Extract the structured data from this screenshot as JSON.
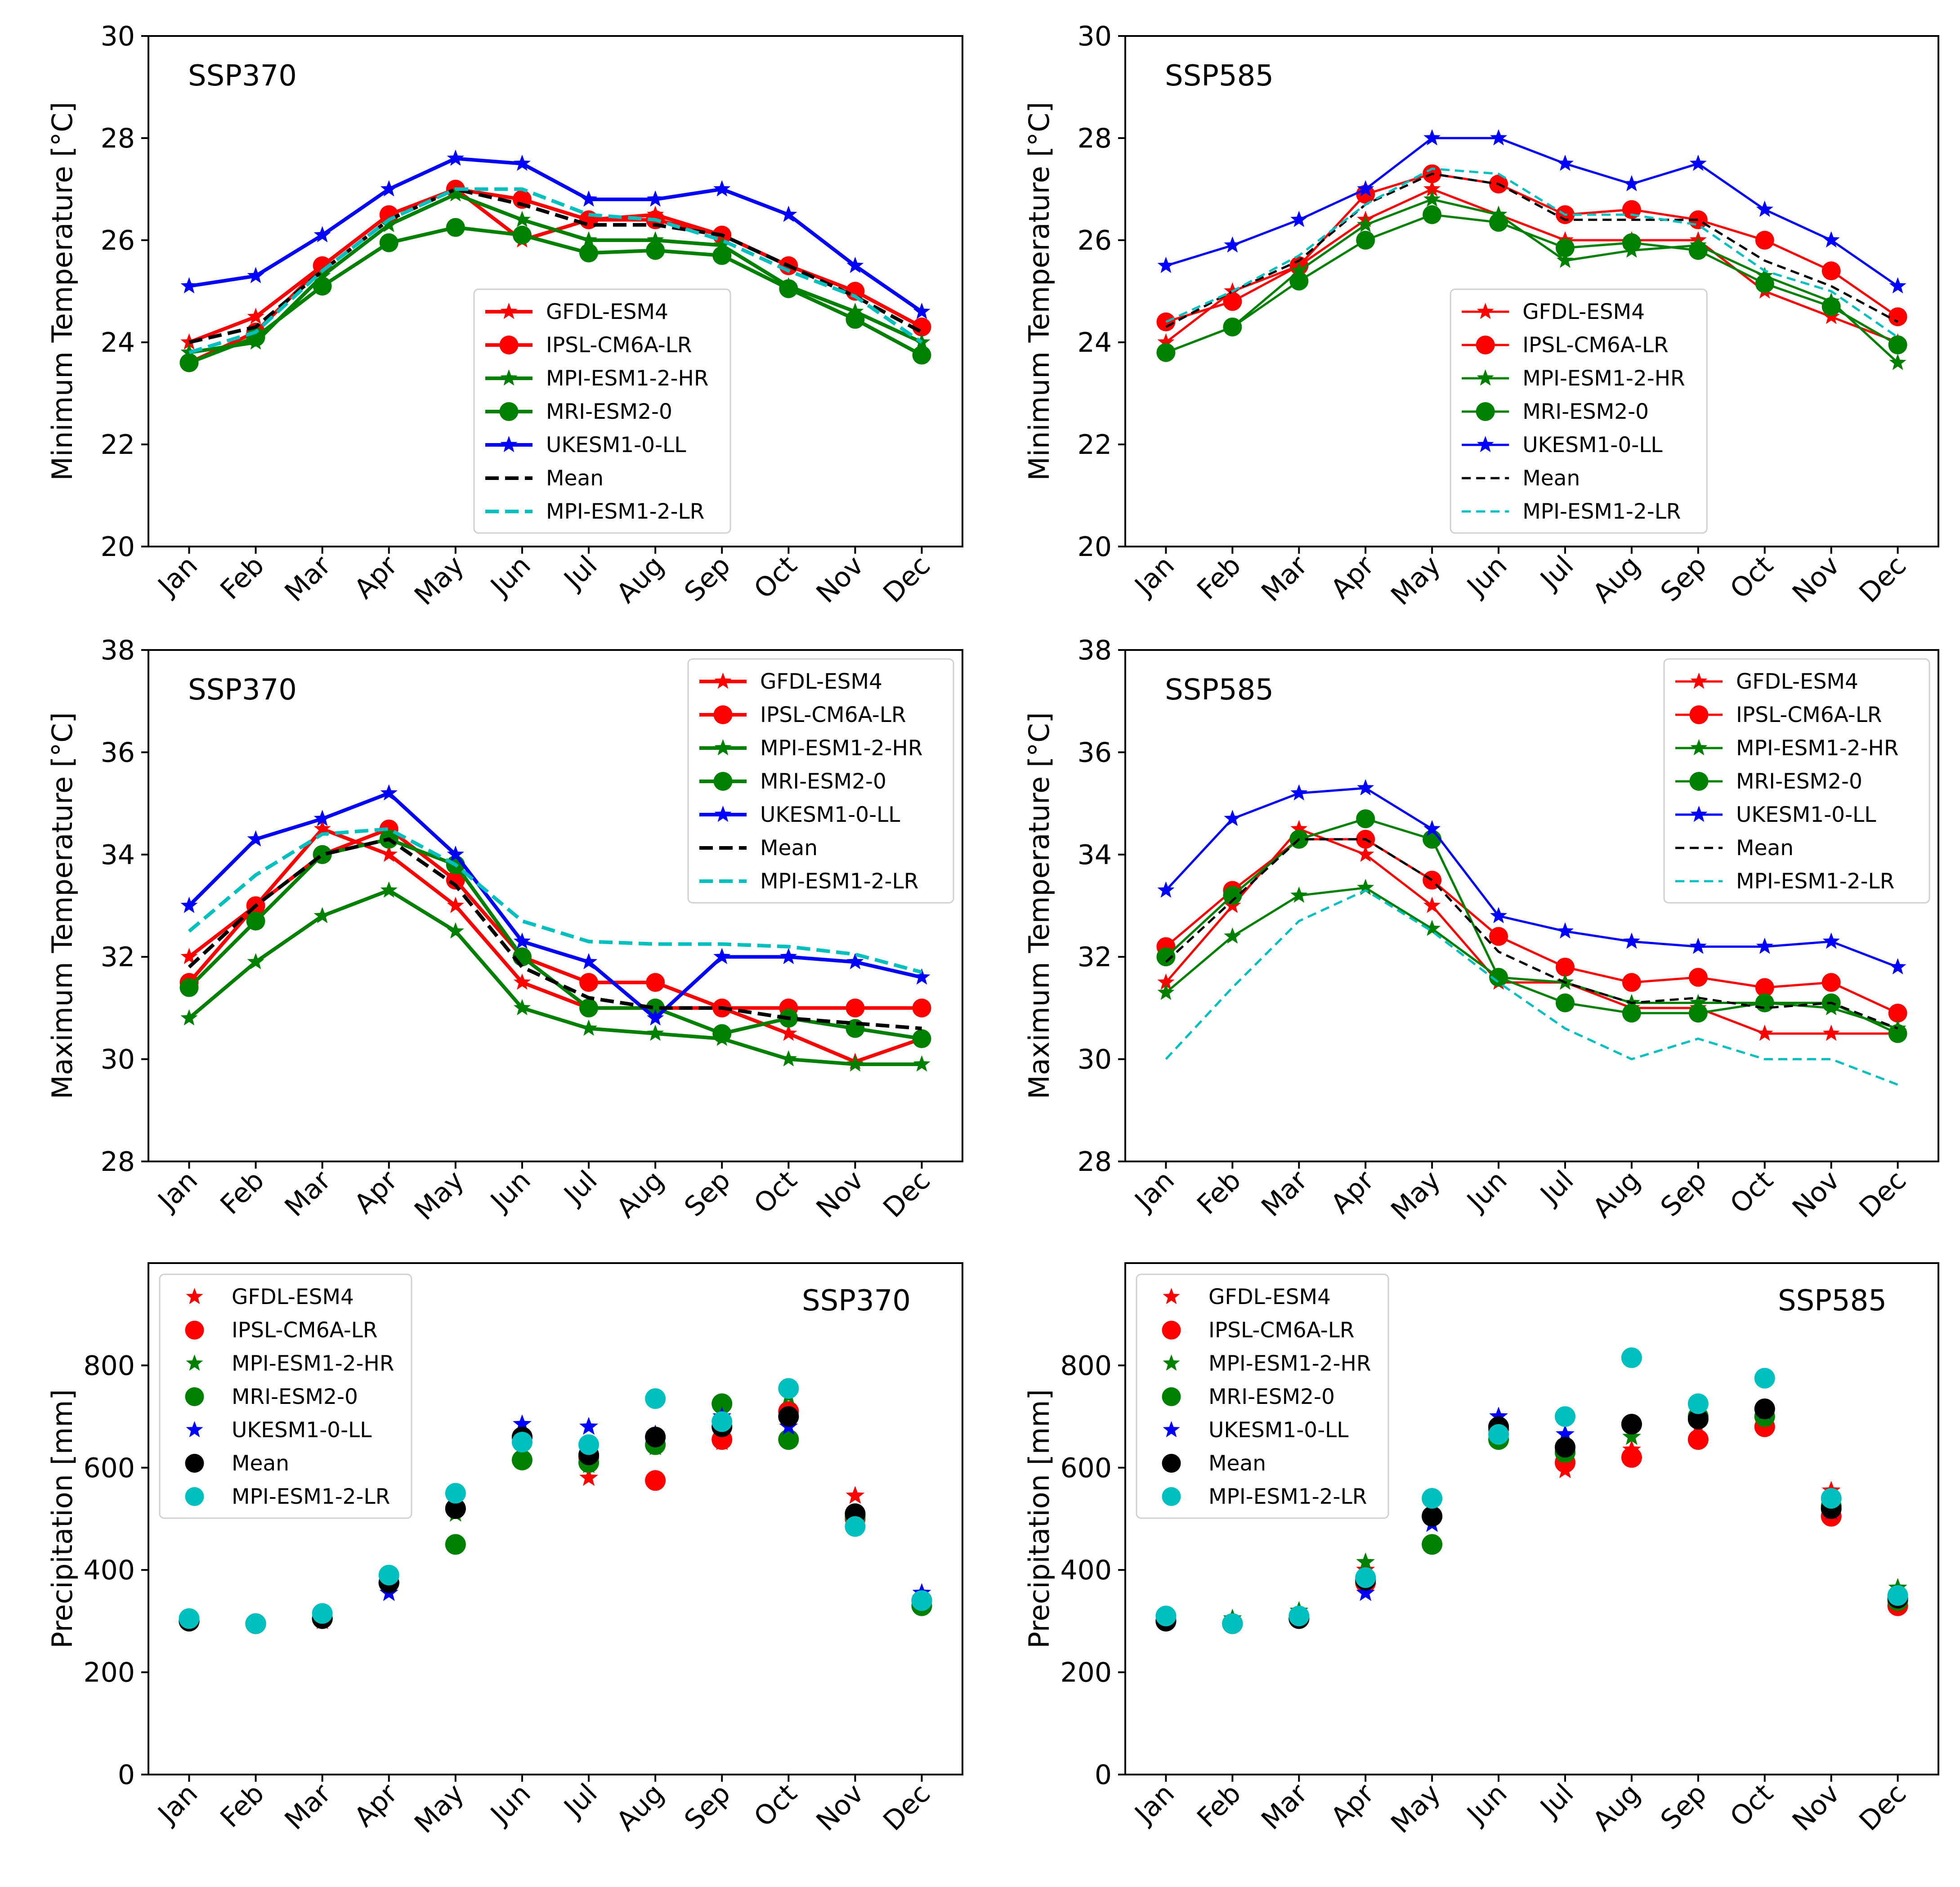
{
  "colors": {
    "GFDL-ESM4": "#ff0000",
    "IPSL-CM6A-LR": "#ff0000",
    "MPI-ESM1-2-HR": "#008000",
    "MRI-ESM2-0": "#008000",
    "UKESM1-0-LL": "#0000ff",
    "Mean": "#000000",
    "MPI-ESM1-2-LR": "#00bfbf"
  },
  "chart_data": [
    {
      "type": "line",
      "title": "SSP370",
      "ylabel": "Minimum Temperature [°C]",
      "ylim": [
        20,
        30
      ],
      "yticks": [
        20,
        22,
        24,
        26,
        28,
        30
      ],
      "legend": "lower-center",
      "categories": [
        "Jan",
        "Feb",
        "Mar",
        "Apr",
        "May",
        "Jun",
        "Jul",
        "Aug",
        "Sep",
        "Oct",
        "Nov",
        "Dec"
      ],
      "series": [
        {
          "name": "GFDL-ESM4",
          "style": "star-line",
          "values": [
            24.0,
            24.5,
            25.5,
            26.5,
            27.0,
            26.0,
            26.4,
            26.5,
            26.1,
            25.5,
            25.0,
            24.3
          ]
        },
        {
          "name": "IPSL-CM6A-LR",
          "style": "circle-line",
          "values": [
            23.6,
            24.2,
            25.5,
            26.5,
            27.0,
            26.8,
            26.4,
            26.4,
            26.1,
            25.5,
            25.0,
            24.3
          ]
        },
        {
          "name": "MPI-ESM1-2-HR",
          "style": "star-line",
          "values": [
            23.8,
            24.0,
            25.3,
            26.3,
            26.9,
            26.4,
            26.0,
            26.0,
            25.9,
            25.1,
            24.6,
            24.0
          ]
        },
        {
          "name": "MRI-ESM2-0",
          "style": "circle-line",
          "values": [
            23.6,
            24.1,
            25.1,
            25.95,
            26.25,
            26.1,
            25.75,
            25.8,
            25.7,
            25.05,
            24.45,
            23.75
          ]
        },
        {
          "name": "UKESM1-0-LL",
          "style": "star-line",
          "values": [
            25.1,
            25.3,
            26.1,
            27.0,
            27.6,
            27.5,
            26.8,
            26.8,
            27.0,
            26.5,
            25.5,
            24.6
          ]
        },
        {
          "name": "Mean",
          "style": "dash",
          "values": [
            24.0,
            24.3,
            25.4,
            26.4,
            27.0,
            26.7,
            26.3,
            26.3,
            26.1,
            25.5,
            24.9,
            24.2
          ]
        },
        {
          "name": "MPI-ESM1-2-LR",
          "style": "dash",
          "values": [
            23.8,
            24.2,
            25.4,
            26.4,
            27.0,
            27.0,
            26.5,
            26.4,
            26.0,
            25.4,
            24.9,
            24.0
          ]
        }
      ]
    },
    {
      "type": "line",
      "title": "SSP585",
      "ylabel": "Minimum Temperature [°C]",
      "ylim": [
        20,
        30
      ],
      "yticks": [
        20,
        22,
        24,
        26,
        28,
        30
      ],
      "legend": "lower-center",
      "categories": [
        "Jan",
        "Feb",
        "Mar",
        "Apr",
        "May",
        "Jun",
        "Jul",
        "Aug",
        "Sep",
        "Oct",
        "Nov",
        "Dec"
      ],
      "series": [
        {
          "name": "GFDL-ESM4",
          "style": "star-line",
          "values": [
            24.0,
            25.0,
            25.5,
            26.4,
            27.0,
            26.5,
            26.0,
            26.0,
            26.0,
            25.0,
            24.5,
            24.0
          ]
        },
        {
          "name": "IPSL-CM6A-LR",
          "style": "circle-line",
          "values": [
            24.4,
            24.8,
            25.5,
            26.9,
            27.3,
            27.1,
            26.5,
            26.6,
            26.4,
            26.0,
            25.4,
            24.5
          ]
        },
        {
          "name": "MPI-ESM1-2-HR",
          "style": "star-line",
          "values": [
            23.8,
            24.3,
            25.4,
            26.3,
            26.8,
            26.5,
            25.6,
            25.8,
            25.9,
            25.3,
            24.8,
            23.6
          ]
        },
        {
          "name": "MRI-ESM2-0",
          "style": "circle-line",
          "values": [
            23.8,
            24.3,
            25.2,
            26.0,
            26.5,
            26.35,
            25.85,
            25.95,
            25.8,
            25.15,
            24.7,
            23.95
          ]
        },
        {
          "name": "UKESM1-0-LL",
          "style": "star-line",
          "values": [
            25.5,
            25.9,
            26.4,
            27.0,
            28.0,
            28.0,
            27.5,
            27.1,
            27.5,
            26.6,
            26.0,
            25.1
          ]
        },
        {
          "name": "Mean",
          "style": "dash-thin",
          "values": [
            24.3,
            25.0,
            25.6,
            26.7,
            27.3,
            27.1,
            26.4,
            26.4,
            26.4,
            25.6,
            25.1,
            24.4
          ]
        },
        {
          "name": "MPI-ESM1-2-LR",
          "style": "dash-thin",
          "values": [
            24.4,
            25.0,
            25.7,
            26.7,
            27.4,
            27.3,
            26.5,
            26.5,
            26.3,
            25.4,
            25.0,
            24.1
          ]
        }
      ]
    },
    {
      "type": "line",
      "title": "SSP370",
      "ylabel": "Maximum Temperature [°C]",
      "ylim": [
        28,
        38
      ],
      "yticks": [
        28,
        30,
        32,
        34,
        36,
        38
      ],
      "legend": "top-right",
      "categories": [
        "Jan",
        "Feb",
        "Mar",
        "Apr",
        "May",
        "Jun",
        "Jul",
        "Aug",
        "Sep",
        "Oct",
        "Nov",
        "Dec"
      ],
      "series": [
        {
          "name": "GFDL-ESM4",
          "style": "star-line",
          "values": [
            32.0,
            33.0,
            34.5,
            34.0,
            33.0,
            31.5,
            31.0,
            31.0,
            31.0,
            30.5,
            29.95,
            30.4
          ]
        },
        {
          "name": "IPSL-CM6A-LR",
          "style": "circle-line",
          "values": [
            31.5,
            33.0,
            34.0,
            34.5,
            33.5,
            32.0,
            31.5,
            31.5,
            31.0,
            31.0,
            31.0,
            31.0
          ]
        },
        {
          "name": "MPI-ESM1-2-HR",
          "style": "star-line",
          "values": [
            30.8,
            31.9,
            32.8,
            33.3,
            32.5,
            31.0,
            30.6,
            30.5,
            30.4,
            30.0,
            29.9,
            29.9
          ]
        },
        {
          "name": "MRI-ESM2-0",
          "style": "circle-line",
          "values": [
            31.4,
            32.7,
            34.0,
            34.3,
            33.8,
            32.0,
            31.0,
            31.0,
            30.5,
            30.8,
            30.6,
            30.4
          ]
        },
        {
          "name": "UKESM1-0-LL",
          "style": "star-line",
          "values": [
            33.0,
            34.3,
            34.7,
            35.2,
            34.0,
            32.3,
            31.9,
            30.8,
            32.0,
            32.0,
            31.9,
            31.6
          ]
        },
        {
          "name": "Mean",
          "style": "dash",
          "values": [
            31.8,
            33.0,
            34.0,
            34.3,
            33.4,
            31.8,
            31.2,
            31.0,
            31.0,
            30.8,
            30.7,
            30.6
          ]
        },
        {
          "name": "MPI-ESM1-2-LR",
          "style": "dash",
          "values": [
            32.5,
            33.6,
            34.4,
            34.5,
            33.8,
            32.7,
            32.3,
            32.25,
            32.25,
            32.2,
            32.05,
            31.7
          ]
        }
      ]
    },
    {
      "type": "line",
      "title": "SSP585",
      "ylabel": "Maximum Temperature [°C]",
      "ylim": [
        28,
        38
      ],
      "yticks": [
        28,
        30,
        32,
        34,
        36,
        38
      ],
      "legend": "top-right",
      "categories": [
        "Jan",
        "Feb",
        "Mar",
        "Apr",
        "May",
        "Jun",
        "Jul",
        "Aug",
        "Sep",
        "Oct",
        "Nov",
        "Dec"
      ],
      "series": [
        {
          "name": "GFDL-ESM4",
          "style": "star-line",
          "values": [
            31.5,
            33.0,
            34.5,
            34.0,
            33.0,
            31.5,
            31.5,
            31.0,
            31.0,
            30.5,
            30.5,
            30.5
          ]
        },
        {
          "name": "IPSL-CM6A-LR",
          "style": "circle-line",
          "values": [
            32.2,
            33.3,
            34.3,
            34.3,
            33.5,
            32.4,
            31.8,
            31.5,
            31.6,
            31.4,
            31.5,
            30.9
          ]
        },
        {
          "name": "MPI-ESM1-2-HR",
          "style": "star-line",
          "values": [
            31.3,
            32.4,
            33.2,
            33.35,
            32.55,
            31.6,
            31.5,
            31.1,
            31.1,
            31.1,
            31.0,
            30.6
          ]
        },
        {
          "name": "MRI-ESM2-0",
          "style": "circle-line",
          "values": [
            32.0,
            33.2,
            34.3,
            34.7,
            34.3,
            31.6,
            31.1,
            30.9,
            30.9,
            31.1,
            31.1,
            30.5
          ]
        },
        {
          "name": "UKESM1-0-LL",
          "style": "star-line",
          "values": [
            33.3,
            34.7,
            35.2,
            35.3,
            34.5,
            32.8,
            32.5,
            32.3,
            32.2,
            32.2,
            32.3,
            31.8
          ]
        },
        {
          "name": "Mean",
          "style": "dash-thin",
          "values": [
            31.9,
            33.1,
            34.3,
            34.3,
            33.5,
            32.1,
            31.5,
            31.1,
            31.2,
            31.0,
            31.1,
            30.6
          ]
        },
        {
          "name": "MPI-ESM1-2-LR",
          "style": "dash-thin",
          "values": [
            30.0,
            31.4,
            32.7,
            33.3,
            32.5,
            31.5,
            30.6,
            30.0,
            30.4,
            30.0,
            30.0,
            29.5
          ]
        }
      ]
    },
    {
      "type": "scatter",
      "title": "SSP370",
      "ylabel": "Precipitation [mm]",
      "ylim": [
        0,
        1000
      ],
      "yticks": [
        0,
        200,
        400,
        600,
        800
      ],
      "legend": "top-left",
      "categories": [
        "Jan",
        "Feb",
        "Mar",
        "Apr",
        "May",
        "Jun",
        "Jul",
        "Aug",
        "Sep",
        "Oct",
        "Nov",
        "Dec"
      ],
      "series": [
        {
          "name": "GFDL-ESM4",
          "style": "star",
          "values": [
            300,
            295,
            300,
            370,
            520,
            650,
            580,
            650,
            650,
            710,
            545,
            340
          ]
        },
        {
          "name": "IPSL-CM6A-LR",
          "style": "circle",
          "values": [
            300,
            295,
            305,
            375,
            520,
            660,
            620,
            575,
            655,
            710,
            500,
            340
          ]
        },
        {
          "name": "MPI-ESM1-2-HR",
          "style": "star",
          "values": [
            305,
            295,
            305,
            380,
            510,
            665,
            605,
            640,
            680,
            740,
            505,
            345
          ]
        },
        {
          "name": "MRI-ESM2-0",
          "style": "circle",
          "values": [
            300,
            295,
            305,
            375,
            450,
            615,
            610,
            645,
            725,
            655,
            505,
            330
          ]
        },
        {
          "name": "UKESM1-0-LL",
          "style": "star",
          "values": [
            300,
            295,
            305,
            355,
            520,
            685,
            680,
            665,
            700,
            680,
            500,
            355
          ]
        },
        {
          "name": "Mean",
          "style": "circle",
          "values": [
            300,
            295,
            305,
            375,
            520,
            660,
            625,
            660,
            680,
            700,
            510,
            340
          ]
        },
        {
          "name": "MPI-ESM1-2-LR",
          "style": "circle",
          "values": [
            305,
            295,
            315,
            390,
            550,
            650,
            645,
            735,
            690,
            755,
            485,
            340
          ]
        }
      ]
    },
    {
      "type": "scatter",
      "title": "SSP585",
      "ylabel": "Precipitation [mm]",
      "ylim": [
        0,
        1000
      ],
      "yticks": [
        0,
        200,
        400,
        600,
        800
      ],
      "legend": "top-left",
      "categories": [
        "Jan",
        "Feb",
        "Mar",
        "Apr",
        "May",
        "Jun",
        "Jul",
        "Aug",
        "Sep",
        "Oct",
        "Nov",
        "Dec"
      ],
      "series": [
        {
          "name": "GFDL-ESM4",
          "style": "star",
          "values": [
            305,
            295,
            310,
            400,
            505,
            670,
            595,
            635,
            680,
            715,
            555,
            330
          ]
        },
        {
          "name": "IPSL-CM6A-LR",
          "style": "circle",
          "values": [
            300,
            295,
            305,
            375,
            505,
            675,
            610,
            620,
            655,
            680,
            505,
            330
          ]
        },
        {
          "name": "MPI-ESM1-2-HR",
          "style": "star",
          "values": [
            305,
            305,
            320,
            415,
            510,
            665,
            625,
            660,
            700,
            695,
            525,
            365
          ]
        },
        {
          "name": "MRI-ESM2-0",
          "style": "circle",
          "values": [
            300,
            295,
            305,
            380,
            450,
            655,
            630,
            685,
            700,
            700,
            525,
            340
          ]
        },
        {
          "name": "UKESM1-0-LL",
          "style": "star",
          "values": [
            300,
            295,
            305,
            355,
            490,
            700,
            665,
            685,
            710,
            710,
            515,
            350
          ]
        },
        {
          "name": "Mean",
          "style": "circle",
          "values": [
            300,
            295,
            305,
            380,
            505,
            680,
            640,
            685,
            695,
            715,
            520,
            345
          ]
        },
        {
          "name": "MPI-ESM1-2-LR",
          "style": "circle",
          "values": [
            310,
            295,
            310,
            385,
            540,
            665,
            700,
            815,
            725,
            775,
            540,
            350
          ]
        }
      ]
    }
  ]
}
